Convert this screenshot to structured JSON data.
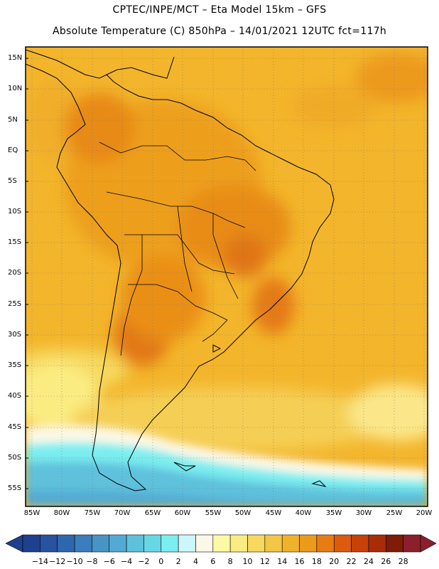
{
  "header": {
    "line1": "CPTEC/INPE/MCT –  Eta Model 15km – GFS",
    "line2": "Absolute Temperature (C) 850hPa – 14/01/2021 12UTC fct=117h"
  },
  "map": {
    "lat_labels": [
      "15N",
      "10N",
      "5N",
      "EQ",
      "5S",
      "10S",
      "15S",
      "20S",
      "25S",
      "30S",
      "35S",
      "40S",
      "45S",
      "50S",
      "55S"
    ],
    "lon_labels": [
      "85W",
      "80W",
      "75W",
      "70W",
      "65W",
      "60W",
      "55W",
      "50W",
      "45W",
      "40W",
      "35W",
      "30W",
      "25W",
      "20W"
    ],
    "ocean_color": "#f4b62a",
    "land_color": "#ed9d1a"
  },
  "legend": {
    "labels": [
      "-14",
      "-12",
      "-10",
      "-8",
      "-6",
      "-4",
      "-2",
      "0",
      "2",
      "4",
      "6",
      "8",
      "10",
      "12",
      "14",
      "16",
      "18",
      "20",
      "22",
      "24",
      "26",
      "28"
    ],
    "colors": [
      "#1f3f8f",
      "#27539f",
      "#2f67ae",
      "#3b7dbd",
      "#4794c7",
      "#52aad3",
      "#5ec1dc",
      "#67d7e6",
      "#7aeef0",
      "#cdf6f8",
      "#fdf8e5",
      "#fdf9a6",
      "#fbec82",
      "#f6d95e",
      "#f2c646",
      "#f0b22b",
      "#ec9a1c",
      "#e67d14",
      "#db5c0d",
      "#c84109",
      "#a82d07",
      "#7e1c06",
      "#8c1f2c"
    ]
  }
}
